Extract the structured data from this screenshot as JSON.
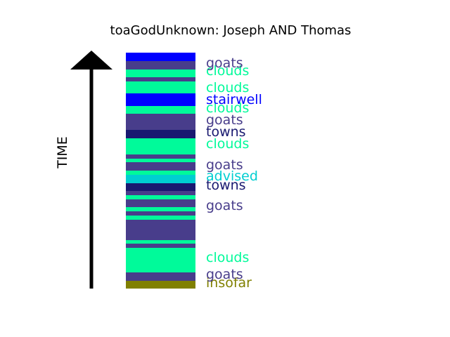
{
  "chart_data": {
    "type": "bar",
    "title": "toaGodUnknown: Joseph AND Thomas",
    "ylabel": "TIME",
    "xlabel": "",
    "ylim": [
      0,
      336
    ],
    "grid": false,
    "legend": "none",
    "colors": {
      "goats": "#483d8b",
      "clouds": "#00fa9a",
      "stairwell": "#0000ff",
      "towns": "#191970",
      "advised": "#00ced1",
      "insofar": "#808000"
    },
    "segments": [
      {
        "category": "insofar",
        "start": 0,
        "end": 11
      },
      {
        "category": "goats",
        "start": 11,
        "end": 23
      },
      {
        "category": "clouds",
        "start": 23,
        "end": 58
      },
      {
        "category": "goats",
        "start": 58,
        "end": 64
      },
      {
        "category": "clouds",
        "start": 64,
        "end": 69
      },
      {
        "category": "goats",
        "start": 69,
        "end": 98
      },
      {
        "category": "clouds",
        "start": 98,
        "end": 104
      },
      {
        "category": "goats",
        "start": 104,
        "end": 110
      },
      {
        "category": "clouds",
        "start": 110,
        "end": 116
      },
      {
        "category": "goats",
        "start": 116,
        "end": 127
      },
      {
        "category": "clouds",
        "start": 127,
        "end": 133
      },
      {
        "category": "goats",
        "start": 133,
        "end": 139
      },
      {
        "category": "towns",
        "start": 139,
        "end": 150
      },
      {
        "category": "advised",
        "start": 150,
        "end": 162
      },
      {
        "category": "clouds",
        "start": 162,
        "end": 168
      },
      {
        "category": "goats",
        "start": 168,
        "end": 180
      },
      {
        "category": "clouds",
        "start": 180,
        "end": 185
      },
      {
        "category": "goats",
        "start": 185,
        "end": 191
      },
      {
        "category": "clouds",
        "start": 191,
        "end": 214
      },
      {
        "category": "towns",
        "start": 214,
        "end": 226
      },
      {
        "category": "goats",
        "start": 226,
        "end": 249
      },
      {
        "category": "clouds",
        "start": 249,
        "end": 260
      },
      {
        "category": "stairwell",
        "start": 260,
        "end": 278
      },
      {
        "category": "clouds",
        "start": 278,
        "end": 295
      },
      {
        "category": "goats",
        "start": 295,
        "end": 301
      },
      {
        "category": "clouds",
        "start": 301,
        "end": 312
      },
      {
        "category": "goats",
        "start": 312,
        "end": 324
      },
      {
        "category": "stairwell",
        "start": 324,
        "end": 336
      }
    ],
    "labels": [
      {
        "text": "insofar",
        "category": "insofar",
        "value": 9
      },
      {
        "text": "goats",
        "category": "goats",
        "value": 21
      },
      {
        "text": "clouds",
        "category": "clouds",
        "value": 45
      },
      {
        "text": "goats",
        "category": "goats",
        "value": 119
      },
      {
        "text": "towns",
        "category": "towns",
        "value": 148
      },
      {
        "text": "advised",
        "category": "advised",
        "value": 161
      },
      {
        "text": "goats",
        "category": "goats",
        "value": 177
      },
      {
        "text": "clouds",
        "category": "clouds",
        "value": 207
      },
      {
        "text": "towns",
        "category": "towns",
        "value": 224
      },
      {
        "text": "goats",
        "category": "goats",
        "value": 241
      },
      {
        "text": "clouds",
        "category": "clouds",
        "value": 258
      },
      {
        "text": "stairwell",
        "category": "stairwell",
        "value": 270
      },
      {
        "text": "clouds",
        "category": "clouds",
        "value": 287
      },
      {
        "text": "clouds",
        "category": "clouds",
        "value": 311
      },
      {
        "text": "goats",
        "category": "goats",
        "value": 322
      }
    ]
  }
}
